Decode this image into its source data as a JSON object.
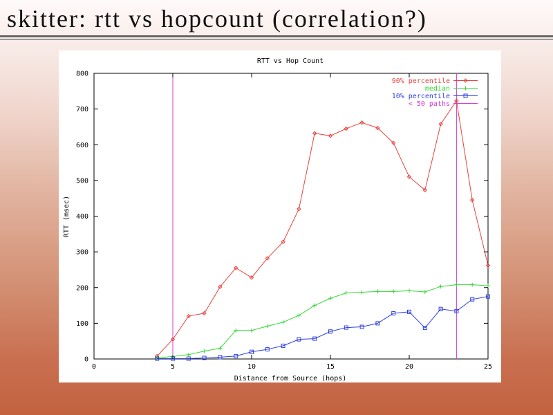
{
  "slide": {
    "title": "skitter: rtt vs hopcount (correlation?)"
  },
  "chart_data": {
    "type": "line",
    "title": "RTT vs Hop Count",
    "xlabel": "Distance from Source (hops)",
    "ylabel": "RTT (msec)",
    "xlim": [
      0,
      25
    ],
    "ylim": [
      0,
      800
    ],
    "xticks": [
      0,
      5,
      10,
      15,
      20,
      25
    ],
    "yticks": [
      0,
      100,
      200,
      300,
      400,
      500,
      600,
      700,
      800
    ],
    "grid": false,
    "legend_position": "top-right",
    "x": [
      4,
      5,
      6,
      7,
      8,
      9,
      10,
      11,
      12,
      13,
      14,
      15,
      16,
      17,
      18,
      19,
      20,
      21,
      22,
      23,
      24,
      25
    ],
    "series": [
      {
        "name": "90% percentile",
        "color": "#e8413c",
        "marker": "diamond",
        "values": [
          8,
          55,
          120,
          128,
          202,
          255,
          228,
          282,
          328,
          420,
          632,
          625,
          645,
          662,
          647,
          605,
          510,
          473,
          658,
          723,
          445,
          262
        ]
      },
      {
        "name": "median",
        "color": "#36d936",
        "marker": "plus",
        "values": [
          3,
          7,
          12,
          22,
          30,
          80,
          80,
          92,
          103,
          122,
          150,
          170,
          185,
          187,
          189,
          189,
          191,
          188,
          203,
          208,
          208,
          205
        ]
      },
      {
        "name": "10% percentile",
        "color": "#2b3fe0",
        "marker": "square",
        "values": [
          1,
          1,
          1,
          3,
          5,
          8,
          20,
          27,
          37,
          55,
          57,
          77,
          88,
          90,
          100,
          128,
          132,
          87,
          140,
          134,
          167,
          175
        ]
      }
    ],
    "reference_lines": {
      "name": "< 50 paths",
      "color": "#d43ad8",
      "x": [
        5,
        23
      ]
    }
  }
}
